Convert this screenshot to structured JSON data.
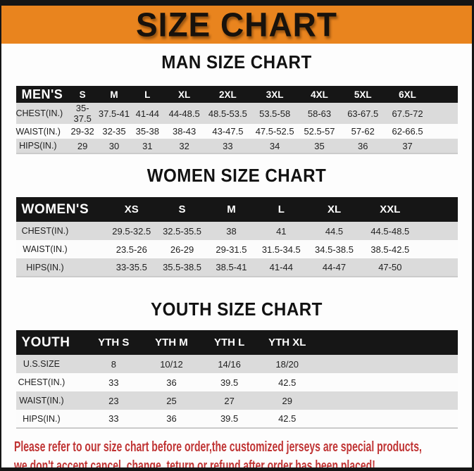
{
  "banner": {
    "title": "SIZE CHART"
  },
  "colors": {
    "banner_orange": "#E9841E",
    "bar_black": "#151515",
    "table_header_black": "#161616",
    "stripe_gray": "#DBDBDB",
    "footer_red": "#C03434"
  },
  "sections": [
    {
      "heading": "MAN SIZE CHART",
      "header_label": "MEN'S",
      "columns": [
        "S",
        "M",
        "L",
        "XL",
        "2XL",
        "3XL",
        "4XL",
        "5XL",
        "6XL"
      ],
      "rows": [
        {
          "label": "CHEST(IN.)",
          "values": [
            "35-37.5",
            "37.5-41",
            "41-44",
            "44-48.5",
            "48.5-53.5",
            "53.5-58",
            "58-63",
            "63-67.5",
            "67.5-72"
          ]
        },
        {
          "label": "WAIST(IN.)",
          "values": [
            "29-32",
            "32-35",
            "35-38",
            "38-43",
            "43-47.5",
            "47.5-52.5",
            "52.5-57",
            "57-62",
            "62-66.5"
          ]
        },
        {
          "label": "HIPS(IN.)",
          "values": [
            "29",
            "30",
            "31",
            "32",
            "33",
            "34",
            "35",
            "36",
            "37"
          ]
        }
      ]
    },
    {
      "heading": "WOMEN SIZE CHART",
      "header_label": "WOMEN'S",
      "columns": [
        "XS",
        "S",
        "M",
        "L",
        "XL",
        "XXL"
      ],
      "rows": [
        {
          "label": "CHEST(IN.)",
          "values": [
            "29.5-32.5",
            "32.5-35.5",
            "38",
            "41",
            "44.5",
            "44.5-48.5"
          ]
        },
        {
          "label": "WAIST(IN.)",
          "values": [
            "23.5-26",
            "26-29",
            "29-31.5",
            "31.5-34.5",
            "34.5-38.5",
            "38.5-42.5"
          ]
        },
        {
          "label": "HIPS(IN.)",
          "values": [
            "33-35.5",
            "35.5-38.5",
            "38.5-41",
            "41-44",
            "44-47",
            "47-50"
          ]
        }
      ]
    },
    {
      "heading": "YOUTH SIZE CHART",
      "header_label": "YOUTH",
      "columns": [
        "YTH S",
        "YTH M",
        "YTH L",
        "YTH XL"
      ],
      "rows": [
        {
          "label": "U.S.SIZE",
          "values": [
            "8",
            "10/12",
            "14/16",
            "18/20"
          ]
        },
        {
          "label": "CHEST(IN.)",
          "values": [
            "33",
            "36",
            "39.5",
            "42.5"
          ]
        },
        {
          "label": "WAIST(IN.)",
          "values": [
            "23",
            "25",
            "27",
            "29"
          ]
        },
        {
          "label": "HIPS(IN.)",
          "values": [
            "33",
            "36",
            "39.5",
            "42.5"
          ]
        }
      ]
    }
  ],
  "footer": {
    "line1": "Please refer to our size chart before order,the customized jerseys are special products,",
    "line2": "we don't accept cancel, change, teturn or refund after order has been placed!"
  }
}
